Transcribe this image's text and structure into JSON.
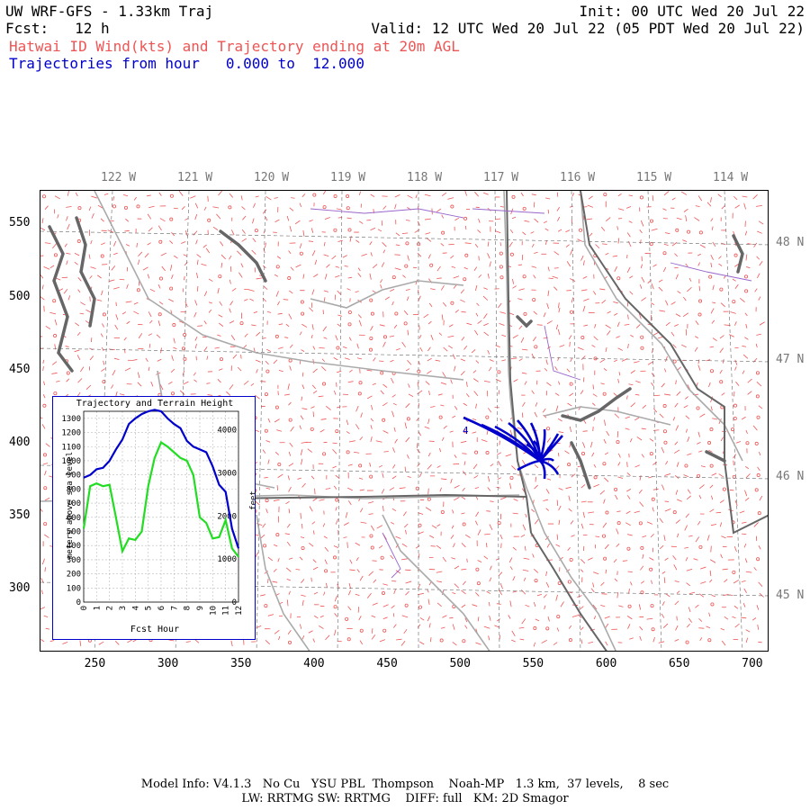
{
  "header": {
    "line1_left": "UW WRF-GFS - 1.33km Traj",
    "line1_right": "Init: 00 UTC Wed 20 Jul 22",
    "line2_left": "Fcst:   12 h",
    "line2_right": "Valid: 12 UTC Wed 20 Jul 22 (05 PDT Wed 20 Jul 22)",
    "line3": "Hatwai ID Wind(kts) and Trajectory ending at 20m AGL",
    "line4": "Trajectories from hour   0.000 to  12.000"
  },
  "colors": {
    "wind_barbs": "#ee5555",
    "trajectory": "#0000cc",
    "terrain": "#22dd22",
    "borders": "#aaaaaa",
    "water": "#666666",
    "inset_border": "#0000cc"
  },
  "map": {
    "lon_labels": [
      "122 W",
      "121 W",
      "120 W",
      "119 W",
      "118 W",
      "117 W",
      "116 W",
      "115 W",
      "114 W"
    ],
    "lat_labels": [
      "48 N",
      "47 N",
      "46 N",
      "45 N"
    ],
    "x_ticks": [
      "250",
      "300",
      "350",
      "400",
      "450",
      "500",
      "550",
      "600",
      "650",
      "700"
    ],
    "y_ticks": [
      "550",
      "500",
      "450",
      "400",
      "350",
      "300"
    ],
    "trajectory_label": "4"
  },
  "inset": {
    "title": "Trajectory and Terrain Height",
    "xlabel": "Fcst Hour",
    "ylabel_left": "meters above sea level",
    "ylabel_right": "feet",
    "x_ticks": [
      "0",
      "1",
      "2",
      "3",
      "4",
      "5",
      "6",
      "7",
      "8",
      "9",
      "10",
      "11",
      "12"
    ],
    "y_ticks_m": [
      "1300",
      "1200",
      "1100",
      "1000",
      "900",
      "800",
      "700",
      "600",
      "500",
      "400",
      "300",
      "200",
      "100",
      "0"
    ],
    "y_ticks_ft": [
      "4000",
      "3000",
      "2000",
      "1000",
      "0"
    ]
  },
  "chart_data": {
    "type": "line",
    "title": "Trajectory and Terrain Height",
    "xlabel": "Fcst Hour",
    "ylabel": "meters above sea level",
    "xlim": [
      0,
      12
    ],
    "ylim": [
      0,
      1350
    ],
    "series": [
      {
        "name": "Trajectory",
        "color": "#0000cc",
        "x": [
          0,
          0.5,
          1,
          1.5,
          2,
          2.5,
          3,
          3.5,
          4,
          4.5,
          5,
          5.5,
          6,
          6.5,
          7,
          7.5,
          8,
          8.5,
          9,
          9.5,
          10,
          10.5,
          11,
          11.5,
          12
        ],
        "values": [
          880,
          900,
          940,
          950,
          1000,
          1080,
          1150,
          1260,
          1300,
          1330,
          1350,
          1360,
          1350,
          1300,
          1260,
          1230,
          1140,
          1100,
          1080,
          1060,
          960,
          830,
          780,
          520,
          380
        ]
      },
      {
        "name": "Terrain",
        "color": "#22dd22",
        "x": [
          0,
          0.5,
          1,
          1.5,
          2,
          2.5,
          3,
          3.5,
          4,
          4.5,
          5,
          5.5,
          6,
          6.5,
          7,
          7.5,
          8,
          8.5,
          9,
          9.5,
          10,
          10.5,
          11,
          11.5,
          12
        ],
        "values": [
          520,
          820,
          840,
          820,
          830,
          600,
          360,
          450,
          440,
          500,
          820,
          1020,
          1130,
          1100,
          1060,
          1020,
          1000,
          900,
          600,
          560,
          450,
          460,
          580,
          380,
          320
        ]
      }
    ]
  },
  "footer": {
    "line1": "Model Info: V4.1.3   No Cu   YSU PBL  Thompson    Noah-MP   1.3 km,  37 levels,    8 sec",
    "line2": "LW: RRTMG SW: RRTMG    DIFF: full   KM: 2D Smagor"
  }
}
